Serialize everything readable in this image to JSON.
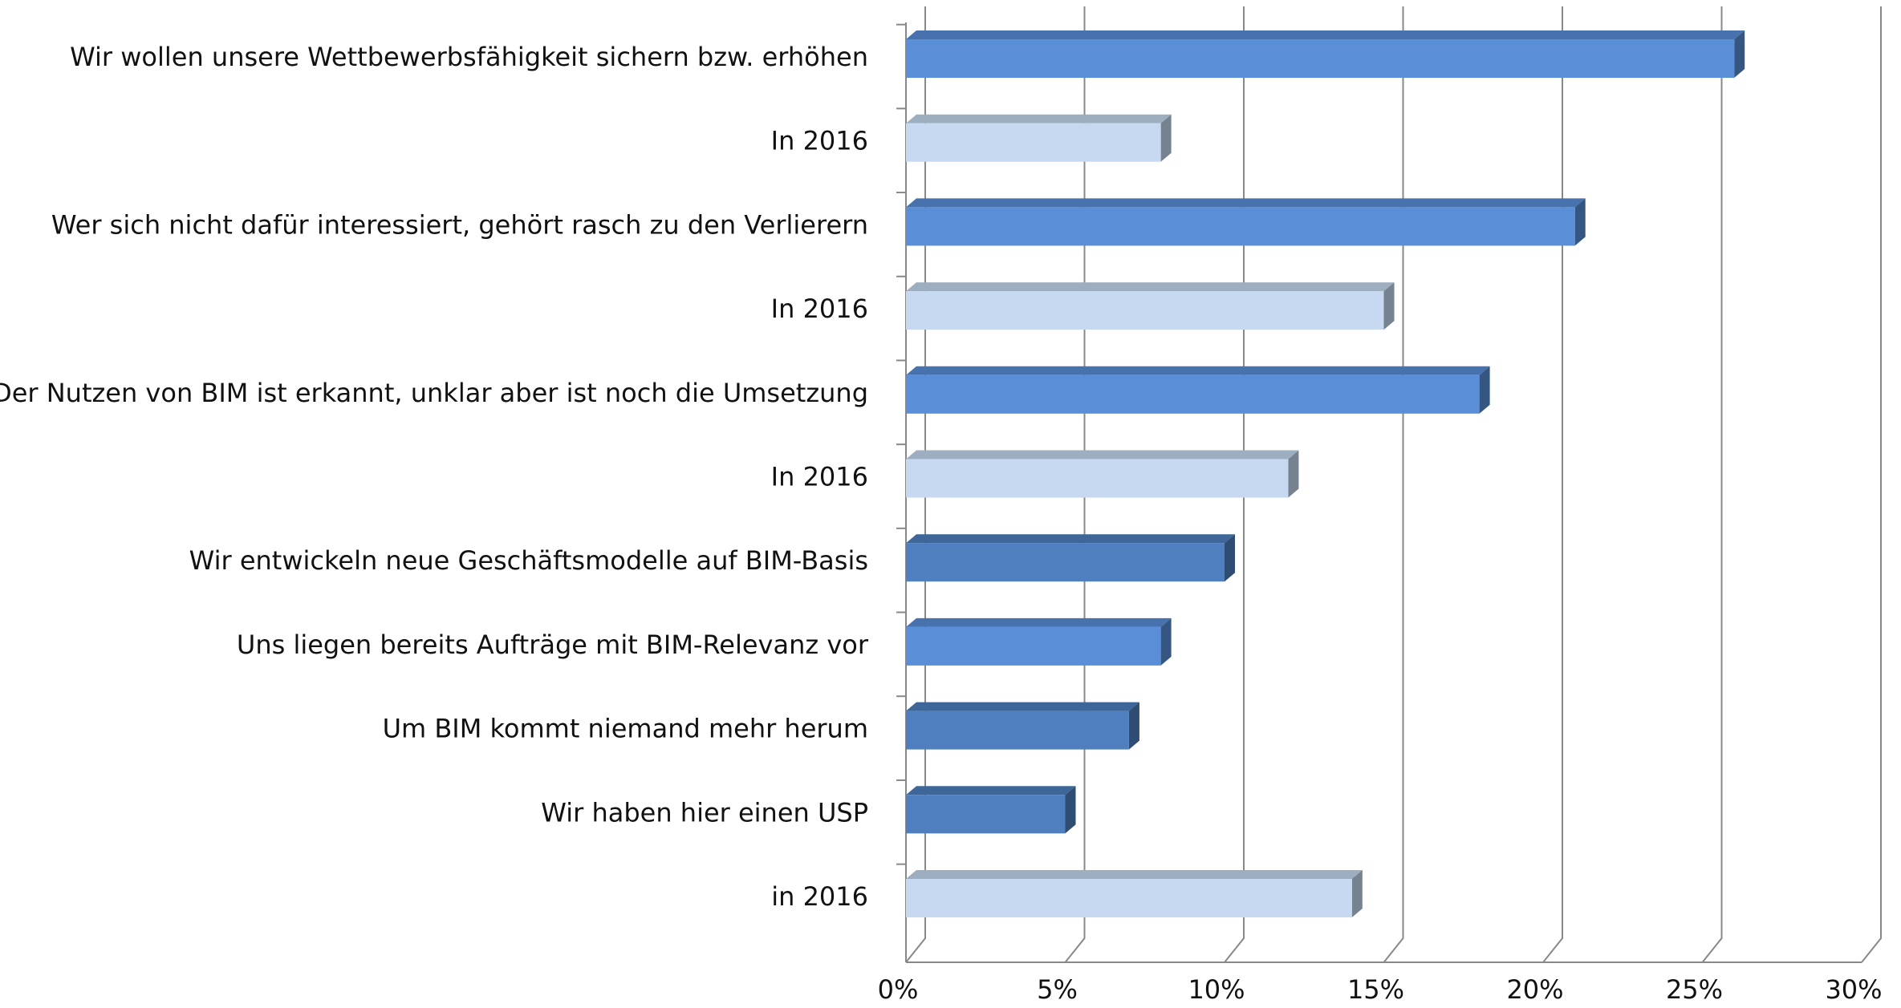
{
  "chart_data": {
    "type": "bar",
    "orientation": "horizontal",
    "categories": [
      "Wir wollen unsere Wettbewerbsfähigkeit sichern bzw. erhöhen",
      "In 2016",
      "Wer sich nicht dafür interessiert, gehört rasch zu den Verlierern",
      "In 2016",
      "Der Nutzen von BIM ist erkannt, unklar aber ist noch die Umsetzung",
      "In 2016",
      "Wir entwickeln neue Geschäftsmodelle auf BIM-Basis",
      "Uns liegen bereits Aufträge mit BIM-Relevanz vor",
      "Um BIM kommt niemand mehr herum",
      "Wir haben hier einen USP",
      "in 2016"
    ],
    "values": [
      26,
      8,
      21,
      15,
      18,
      12,
      10,
      8,
      7,
      5,
      14
    ],
    "colors": [
      "#5a8fd8",
      "#c6d9f1",
      "#5a8fd8",
      "#c6d9f1",
      "#5a8fd8",
      "#c6d9f1",
      "#4f7fbe",
      "#5a8fd8",
      "#4f7fbe",
      "#4f7fbe",
      "#c6d9f1"
    ],
    "xlim": [
      0,
      30
    ],
    "xticks": [
      {
        "value": 0,
        "label": "0%"
      },
      {
        "value": 5,
        "label": "5%"
      },
      {
        "value": 10,
        "label": "10%"
      },
      {
        "value": 15,
        "label": "15%"
      },
      {
        "value": 20,
        "label": "20%"
      },
      {
        "value": 25,
        "label": "25%"
      },
      {
        "value": 30,
        "label": "30%"
      }
    ],
    "grid": true
  }
}
